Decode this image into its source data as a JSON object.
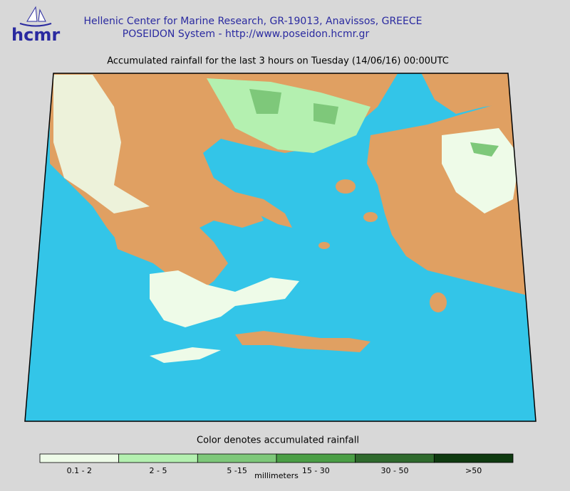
{
  "header": {
    "logo": "hcmr",
    "line1": "Hellenic Center for Marine Research, GR-19013, Anavissos, GREECE",
    "line2": "POSEIDON System - http://www.poseidon.hcmr.gr"
  },
  "title": "Accumulated rainfall for the last 3 hours on Tuesday (14/06/16) 00:00UTC",
  "legend": {
    "title": "Color denotes accumulated rainfall",
    "unit": "millimeters",
    "items": [
      {
        "label": "0.1 - 2",
        "color": "#eefbe8"
      },
      {
        "label": "2 - 5",
        "color": "#b4f0b0"
      },
      {
        "label": "5 -15",
        "color": "#7ec87a"
      },
      {
        "label": "15 - 30",
        "color": "#4a9e45"
      },
      {
        "label": "30 - 50",
        "color": "#2f6a2d"
      },
      {
        "label": ">50",
        "color": "#0f3a10"
      }
    ]
  }
}
